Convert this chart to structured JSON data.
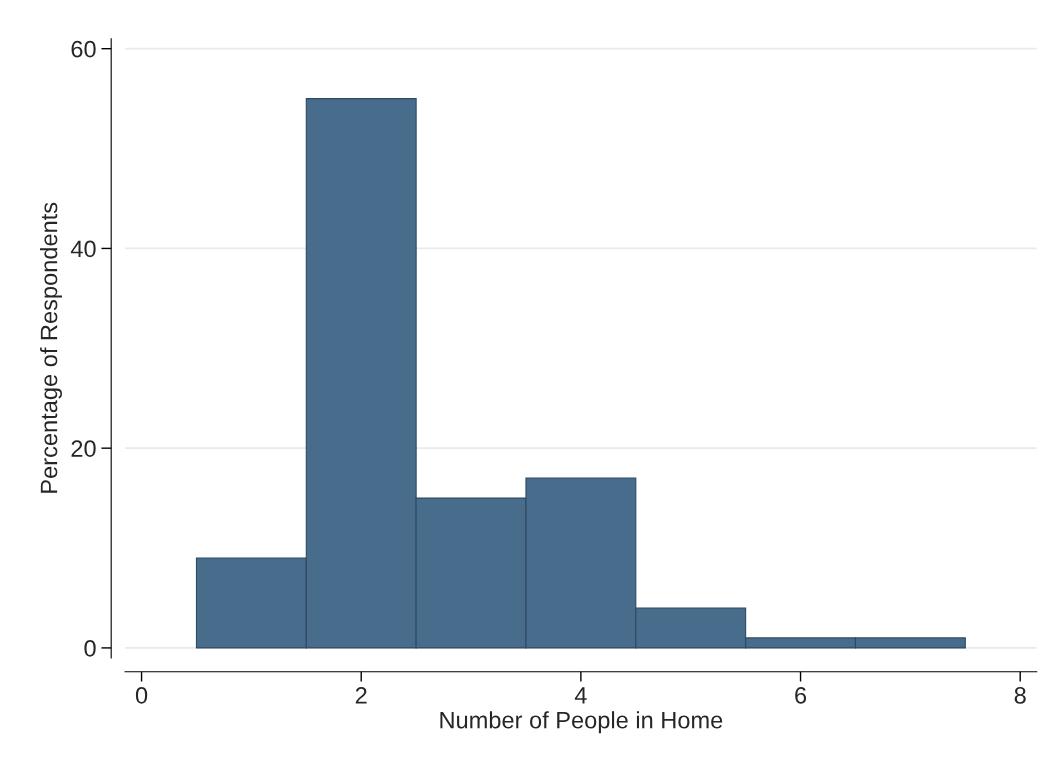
{
  "chart_data": {
    "type": "histogram",
    "bins": [
      0.5,
      1.5,
      2.5,
      3.5,
      4.5,
      5.5,
      6.5,
      7.5
    ],
    "values": [
      9,
      55,
      15,
      17,
      4,
      1,
      1
    ],
    "color": "#486c8c",
    "xlabel": "Number of People in Home",
    "ylabel": "Percentage of Respondents",
    "xlim": [
      -0.15,
      8.15
    ],
    "ylim": [
      -1,
      61
    ],
    "xticks": [
      0,
      2,
      4,
      6,
      8
    ],
    "yticks": [
      0,
      20,
      40,
      60
    ],
    "grid": "y"
  }
}
